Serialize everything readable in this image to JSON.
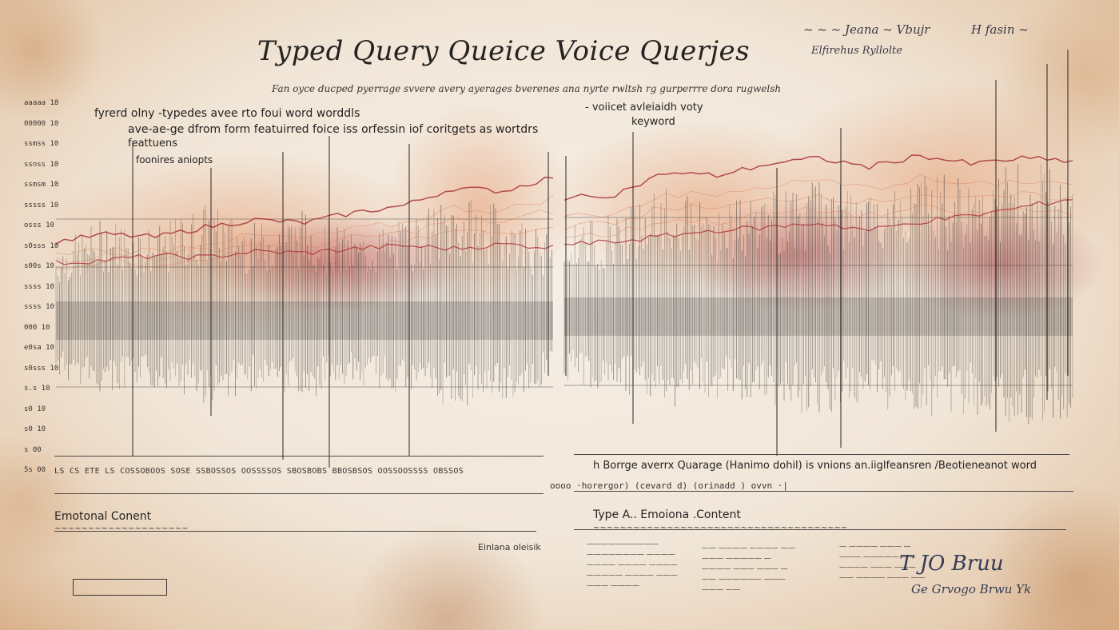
{
  "title": "Typed Query  Queice Voice Querjes",
  "subtitle": "Fan oyce ducped pyerrage svvere avery ayerages bverenes ana nyrte rwltsh rg gurperrre dora rugwelsh",
  "header_signature": {
    "line1": "~ ~ ~ Jeana ~ Vbujr",
    "line2": "Elfirehus Ryllolte",
    "line3": "H fasin ~"
  },
  "annotations_left": [
    "fyrerd olny -typedes avee rto foui word worddls",
    "ave-ae-ge dfrom form featuirred foice iss orfessin iof coritgets as wortdrs",
    "feattuens",
    "foonires aniopts"
  ],
  "annotations_right": [
    "- voiicet avleiaidh voty",
    "keyword"
  ],
  "y_tick_labels": [
    "aaaaa 18",
    "00000 10",
    "ssmss 10",
    "ssnss 10",
    "ssmsm 10",
    "sssss 10",
    "osss 10",
    "s0sss 10",
    "s00s 10",
    "ssss 10",
    "ssss 10",
    "000 10",
    "e0sa 10",
    "s0sss 10",
    "s.s 10",
    "s0 10",
    "s0 10",
    "s 00",
    "5s 00"
  ],
  "x_axis_left_label": "LS CS ETE LS COSSOBOOS SOSE SSBOSSOS OOSSSSOS SBOSBOBS BBOSBSOS OOSSOOSSSS OBSSOS",
  "x_axis_right_label": "h Borrge averrx Quarage (Hanimo dohil) is vnions an.iiglfeansren /Beotieneanot word",
  "x_axis_right_label2": "oooo ·horergor) (cevard d) (orinadd ) ovvn ·|",
  "section_left": {
    "title": "Emotonal Conent",
    "subtitle": "~~~~~~~~~~~~~~~~~~~~",
    "note": "Einlana oleisik"
  },
  "section_right": {
    "title": "Type A.. Emoiona .Content",
    "subtitle": "~~~~~~~~~~~~~~~~~~~~~~~~~~~~~~~~~~~~~~",
    "notes_col1": [
      "——————————",
      "———————— ————",
      "———— ———— ————",
      "————— ———— ———",
      "——— ————"
    ],
    "notes_col2": [
      "—— ———— ———— ——",
      "——— ————— —",
      "———— ——— ——— —",
      "—— —————— ———",
      "——— ——"
    ],
    "notes_col3": [
      "— ———— ——— —",
      "——— ————— ——",
      "———— ——— ———",
      "—— ———— ——— ——"
    ]
  },
  "footer_signature": {
    "line1": "T JO Bruu",
    "line2": "Ge Grvogo Brwu Yk"
  },
  "colors": {
    "ink": "#262321",
    "waveform": "#3c3836",
    "red_trace": "#a8323a",
    "orange_wash": "#e49a6e",
    "paper": "#f3eadf"
  },
  "chart_data": {
    "type": "line",
    "title": "Typed Query  Queice Voice Querjes",
    "xlabel": "",
    "ylabel": "",
    "grid": true,
    "panels": [
      {
        "name": "",
        "x": [
          0,
          0.1,
          0.2,
          0.3,
          0.4,
          0.5,
          0.6,
          0.7,
          0.8,
          0.9,
          1.0
        ],
        "amplitude": [
          0.45,
          0.62,
          0.55,
          0.7,
          0.58,
          0.66,
          0.52,
          0.6,
          0.74,
          0.68,
          0.5
        ],
        "trace_high": [
          0.35,
          0.4,
          0.38,
          0.45,
          0.5,
          0.48,
          0.55,
          0.6,
          0.72,
          0.7,
          0.8
        ],
        "trace_low": [
          0.2,
          0.22,
          0.25,
          0.24,
          0.28,
          0.27,
          0.3,
          0.32,
          0.3,
          0.33,
          0.31
        ]
      },
      {
        "name": "",
        "x": [
          0,
          0.1,
          0.2,
          0.3,
          0.4,
          0.5,
          0.6,
          0.7,
          0.8,
          0.9,
          1.0
        ],
        "amplitude": [
          0.5,
          0.6,
          0.72,
          0.64,
          0.7,
          0.78,
          0.68,
          0.82,
          0.76,
          0.88,
          0.8
        ],
        "trace_high": [
          0.62,
          0.65,
          0.8,
          0.78,
          0.86,
          0.9,
          0.84,
          0.92,
          0.86,
          0.9,
          0.88
        ],
        "trace_low": [
          0.3,
          0.32,
          0.36,
          0.4,
          0.42,
          0.45,
          0.4,
          0.46,
          0.5,
          0.56,
          0.62
        ]
      }
    ]
  }
}
